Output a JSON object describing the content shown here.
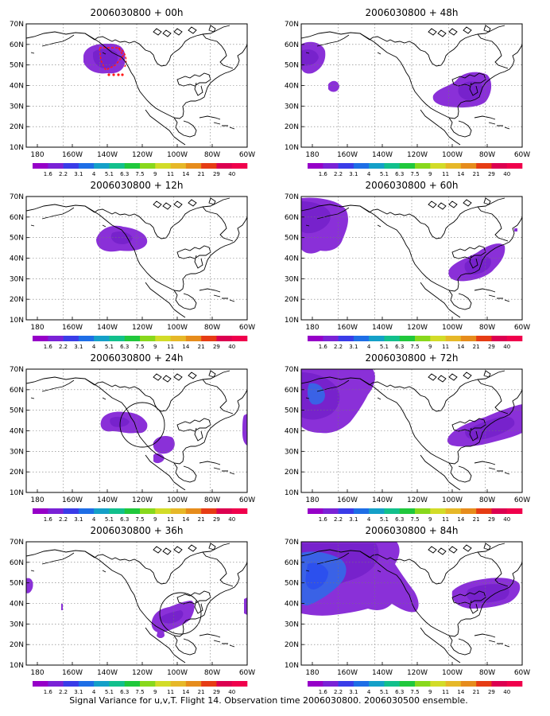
{
  "caption": "Signal Variance for u,v,T. Flight 14. Observation time 2006030800. 2006030500 ensemble.",
  "y_ticks": [
    "70N",
    "60N",
    "50N",
    "40N",
    "30N",
    "20N",
    "10N"
  ],
  "x_ticks": [
    "180",
    "160W",
    "140W",
    "120W",
    "100W",
    "80W",
    "60W"
  ],
  "colorbar": {
    "labels": [
      "1.6",
      "2.2",
      "3.1",
      "4",
      "5.1",
      "6.3",
      "7.5",
      "9",
      "11",
      "14",
      "21",
      "29",
      "40"
    ],
    "colors": [
      "#9600c8",
      "#7a22d6",
      "#3a3ce8",
      "#1e6ee6",
      "#14a0c8",
      "#12c08c",
      "#20c83c",
      "#88d81c",
      "#d2dc28",
      "#e6b828",
      "#e68c1c",
      "#e63c14",
      "#dc0050",
      "#f0004c"
    ]
  },
  "fill": {
    "light": "#8a30d8",
    "medium": "#7722cc",
    "blue": "#3a62e6",
    "deep_blue": "#2c50ee",
    "red_track": "#ff1a1a"
  },
  "panels": [
    {
      "title": "2006030800 + 00h"
    },
    {
      "title": "2006030800 + 48h"
    },
    {
      "title": "2006030800 + 12h"
    },
    {
      "title": "2006030800 + 60h"
    },
    {
      "title": "2006030800 + 24h"
    },
    {
      "title": "2006030800 + 72h"
    },
    {
      "title": "2006030800 + 36h"
    },
    {
      "title": "2006030800 + 84h"
    }
  ]
}
